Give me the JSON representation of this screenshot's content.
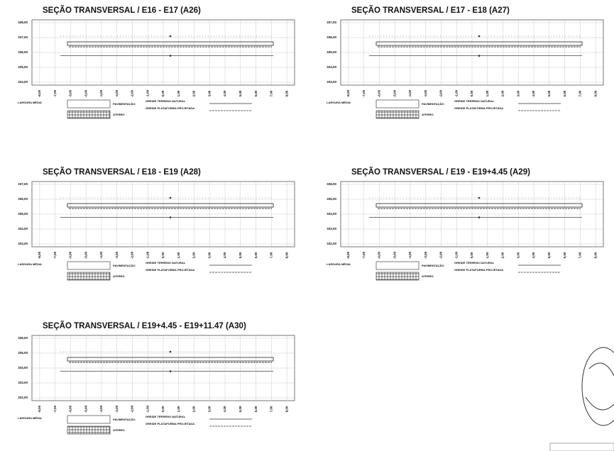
{
  "sections": [
    {
      "title": "SEÇÃO TRANSVERSAL / E16 - E17 (A26)",
      "y_labels": [
        "338,00",
        "337,00",
        "336,00",
        "335,00",
        "334,00"
      ]
    },
    {
      "title": "SEÇÃO TRANSVERSAL / E17 - E18 (A27)",
      "y_labels": [
        "337,00",
        "336,00",
        "335,00",
        "334,00",
        "333,00"
      ]
    },
    {
      "title": "SEÇÃO TRANSVERSAL / E18 - E19 (A28)",
      "y_labels": [
        "337,00",
        "336,00",
        "335,00",
        "334,00",
        "333,00"
      ]
    },
    {
      "title": "SEÇÃO TRANSVERSAL / E19 - E19+4.45 (A29)",
      "y_labels": [
        "336,00",
        "335,00",
        "334,00",
        "333,00",
        "332,00"
      ]
    },
    {
      "title": "SEÇÃO TRANSVERSAL / E19+4.45 - E19+11.47 (A30)",
      "y_labels": [
        "336,00",
        "335,00",
        "334,00",
        "333,00",
        "332,00"
      ]
    }
  ],
  "x_labels": [
    "-8,00",
    "-7,00",
    "-6,00",
    "-5,00",
    "-4,00",
    "-3,00",
    "-2,00",
    "-1,00",
    "0,00",
    "1,00",
    "2,00",
    "3,00",
    "4,00",
    "5,00",
    "6,00",
    "7,00",
    "8,00"
  ],
  "legend": {
    "width": "LARGURA MÉDIA",
    "paving": "PAVIMENTAÇÃO",
    "fill": "ATERRO",
    "natural": "GREIDE TERRENO NATURAL",
    "platform": "GREIDE PLATAFORMA PROJETADA"
  }
}
